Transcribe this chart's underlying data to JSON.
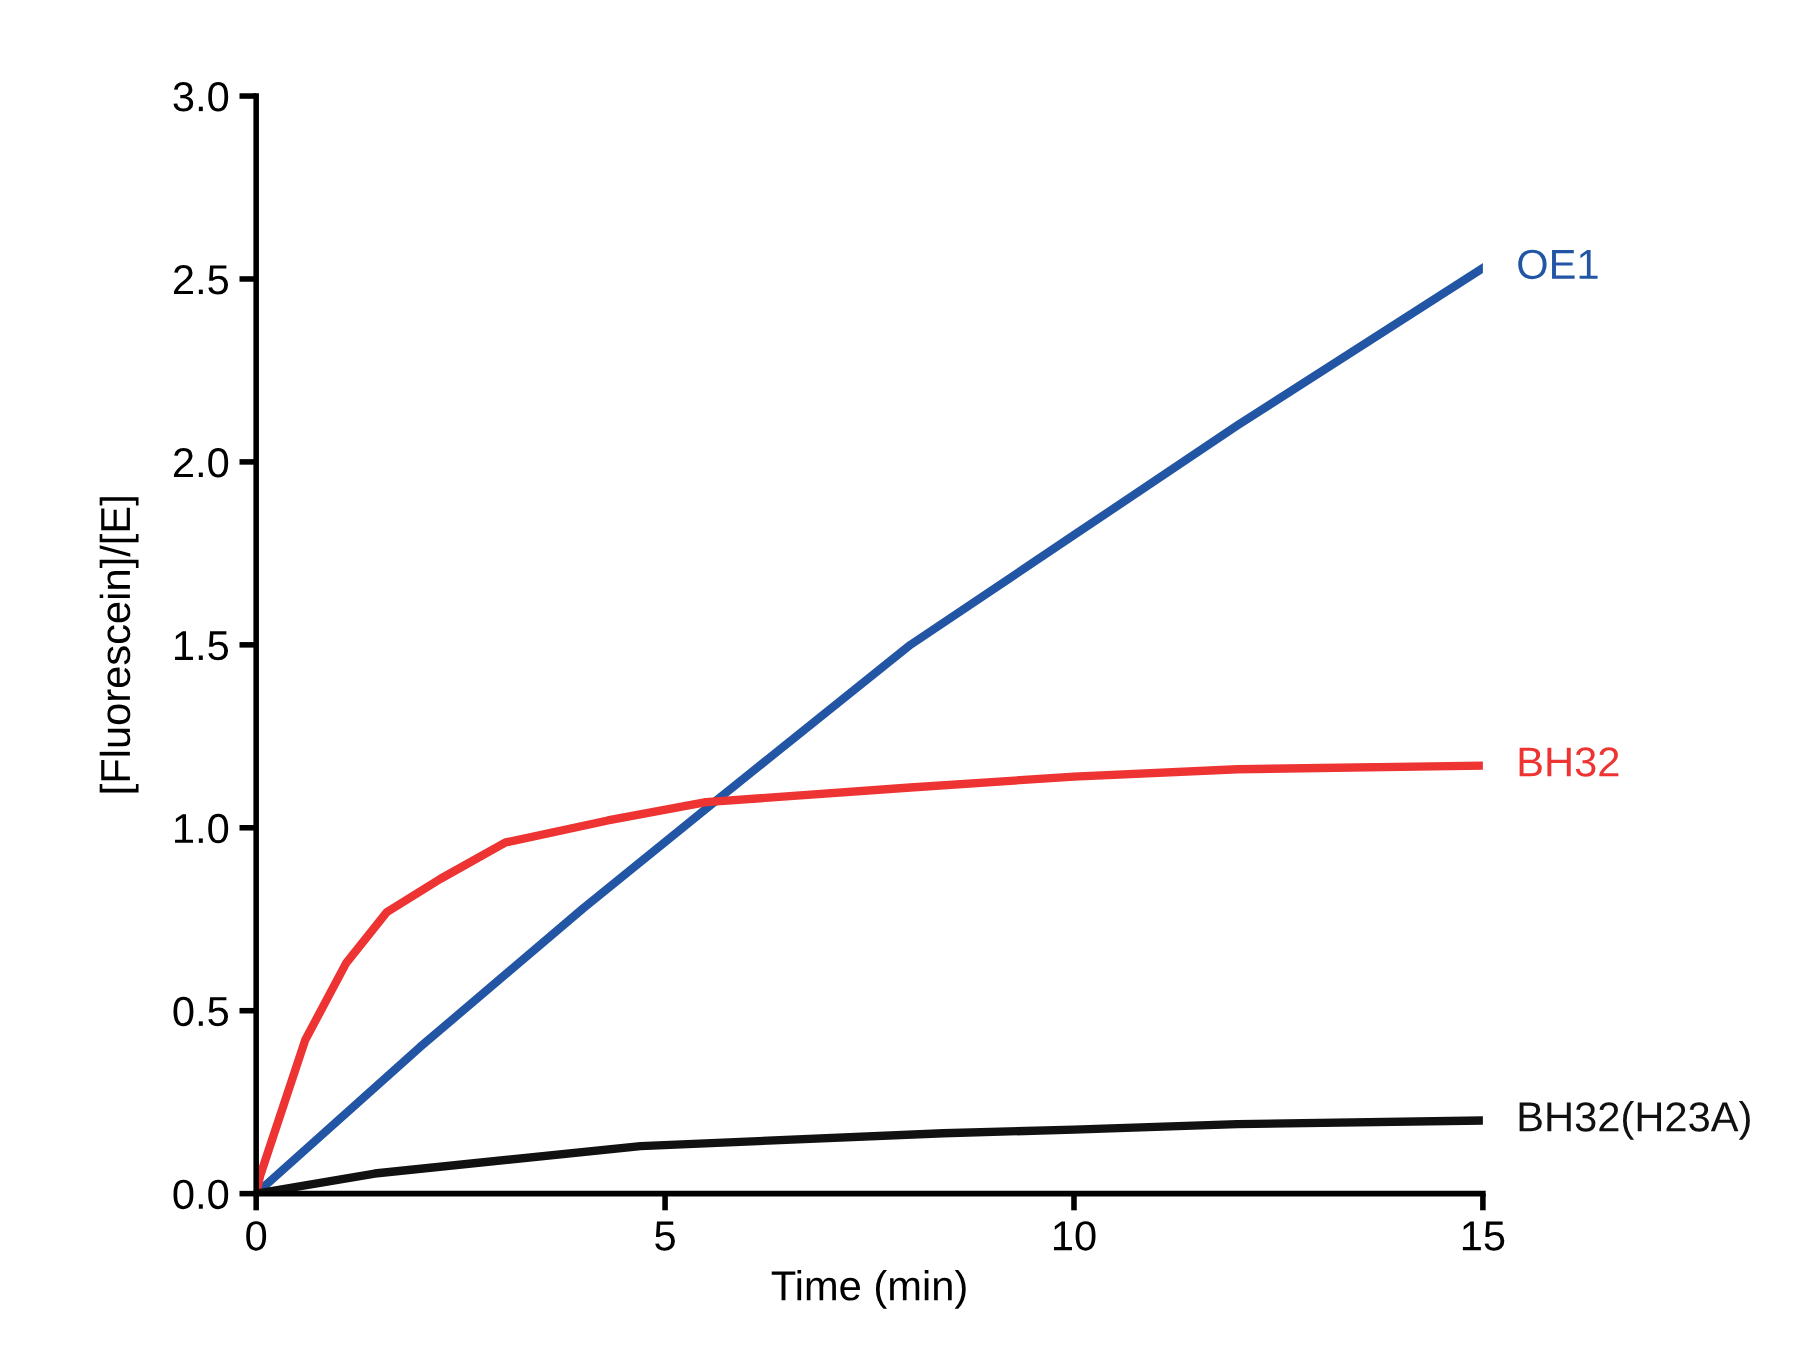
{
  "chart_data": {
    "type": "line",
    "xlabel": "Time (min)",
    "ylabel": "[Fluorescein]/[E]",
    "xlim": [
      0,
      15
    ],
    "ylim": [
      0,
      3.0
    ],
    "xticks": [
      0,
      5,
      10,
      15
    ],
    "yticks": [
      {
        "value": 0,
        "label": "0.0"
      },
      0.5,
      {
        "value": 1,
        "label": "1.0"
      },
      1.5,
      {
        "value": 2,
        "label": "2.0"
      },
      2.5,
      {
        "value": 3,
        "label": "3.0"
      }
    ],
    "grid": false,
    "legend": false,
    "marker": "none",
    "line_style": "solid",
    "series": [
      {
        "name": "OE1",
        "color": "#2255a4",
        "x": [
          0,
          2,
          4,
          5.6,
          8,
          10,
          12,
          15
        ],
        "values": [
          0,
          0.4,
          0.78,
          1.07,
          1.5,
          1.8,
          2.1,
          2.53
        ]
      },
      {
        "name": "BH32",
        "color": "#ee3333",
        "x": [
          0,
          0.05,
          0.6,
          1.1,
          1.6,
          2.25,
          3.05,
          4.3,
          5.5,
          8,
          10,
          12,
          15
        ],
        "values": [
          0,
          0.05,
          0.42,
          0.63,
          0.77,
          0.86,
          0.96,
          1.02,
          1.07,
          1.11,
          1.14,
          1.16,
          1.17
        ]
      },
      {
        "name": "BH32(H23A)",
        "color": "#111111",
        "x": [
          0,
          1.45,
          4.7,
          8.4,
          10,
          12,
          15
        ],
        "values": [
          0,
          0.055,
          0.13,
          0.165,
          0.175,
          0.19,
          0.2
        ]
      }
    ]
  }
}
